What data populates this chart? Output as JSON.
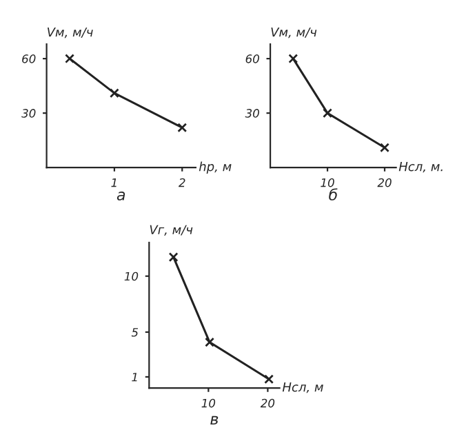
{
  "chart_data": [
    {
      "type": "line",
      "ylabel": "Vм, м/ч",
      "xlabel": "hр, м",
      "annotations": [
        "а"
      ],
      "marker": "cross",
      "series": [
        {
          "color": "#222222",
          "x": [
            0.34,
            1,
            2
          ],
          "values": [
            60,
            41,
            22
          ]
        }
      ],
      "xlim": [
        0,
        2.2
      ],
      "ylim": [
        0,
        68
      ],
      "xticks": [
        1,
        2
      ],
      "yticks": [
        30,
        60
      ],
      "grid": false
    },
    {
      "type": "line",
      "ylabel": "Vм, м/ч",
      "xlabel": "Hсл, м.",
      "annotations": [
        "б"
      ],
      "marker": "cross",
      "series": [
        {
          "color": "#222222",
          "x": [
            4,
            10,
            20
          ],
          "values": [
            60,
            30,
            11
          ]
        }
      ],
      "xlim": [
        0,
        22
      ],
      "ylim": [
        0,
        68
      ],
      "xticks": [
        10,
        20
      ],
      "yticks": [
        30,
        60
      ],
      "grid": false
    },
    {
      "type": "line",
      "ylabel": "Vг, м/ч",
      "xlabel": "Hсл, м",
      "annotations": [
        "в"
      ],
      "marker": "cross",
      "series": [
        {
          "color": "#222222",
          "x": [
            4.1,
            10.2,
            20.2
          ],
          "values": [
            11.7,
            4.1,
            0.8
          ]
        }
      ],
      "xlim": [
        0,
        22
      ],
      "ylim": [
        0,
        13
      ],
      "xticks": [
        10,
        20
      ],
      "yticks": [
        1,
        5,
        10
      ],
      "grid": false
    }
  ]
}
